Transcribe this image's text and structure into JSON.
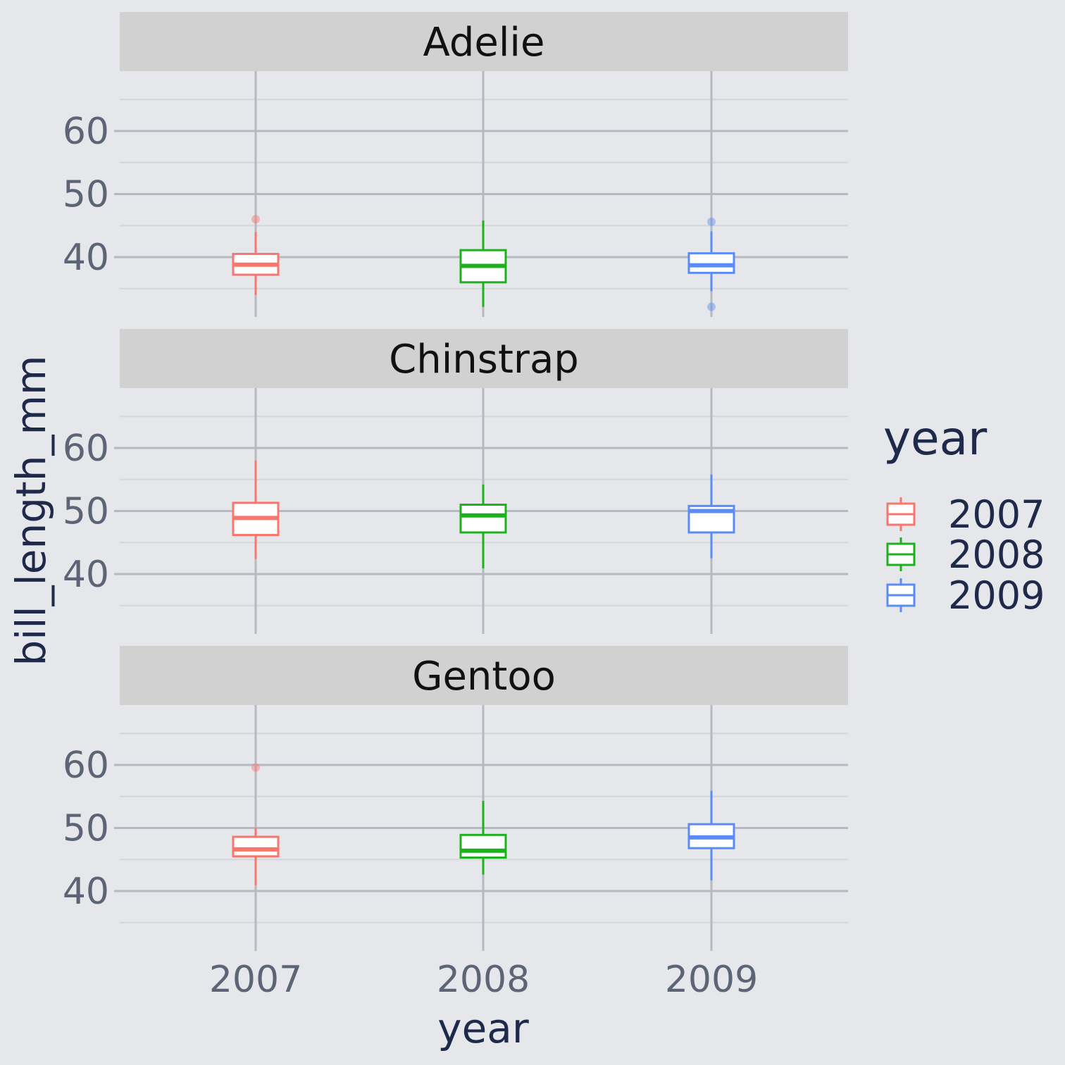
{
  "chart_data": {
    "type": "box",
    "xlabel": "year",
    "ylabel": "bill_length_mm",
    "categories": [
      "2007",
      "2008",
      "2009"
    ],
    "yticks": [
      40,
      50,
      60
    ],
    "ylim": [
      30.5,
      69.5
    ],
    "legend": {
      "title": "year",
      "entries": [
        "2007",
        "2008",
        "2009"
      ],
      "position": "right"
    },
    "colors": {
      "2007": "#f8766d",
      "2008": "#1db11d",
      "2009": "#5b8cf5"
    },
    "panels": [
      {
        "title": "Adelie",
        "boxes": [
          {
            "x": "2007",
            "whisker_low": 34.0,
            "q1": 37.2,
            "median": 38.8,
            "q3": 40.5,
            "whisker_high": 44.0,
            "outliers": [
              46.0
            ]
          },
          {
            "x": "2008",
            "whisker_low": 32.1,
            "q1": 36.0,
            "median": 38.6,
            "q3": 41.1,
            "whisker_high": 45.8,
            "outliers": []
          },
          {
            "x": "2009",
            "whisker_low": 34.6,
            "q1": 37.5,
            "median": 38.7,
            "q3": 40.6,
            "whisker_high": 44.1,
            "outliers": [
              45.6,
              32.1
            ]
          }
        ]
      },
      {
        "title": "Chinstrap",
        "boxes": [
          {
            "x": "2007",
            "whisker_low": 42.4,
            "q1": 46.2,
            "median": 48.9,
            "q3": 51.3,
            "whisker_high": 58.0,
            "outliers": []
          },
          {
            "x": "2008",
            "whisker_low": 40.9,
            "q1": 46.6,
            "median": 49.3,
            "q3": 51.0,
            "whisker_high": 54.2,
            "outliers": []
          },
          {
            "x": "2009",
            "whisker_low": 42.5,
            "q1": 46.6,
            "median": 50.0,
            "q3": 50.8,
            "whisker_high": 55.8,
            "outliers": []
          }
        ]
      },
      {
        "title": "Gentoo",
        "boxes": [
          {
            "x": "2007",
            "whisker_low": 40.9,
            "q1": 45.5,
            "median": 46.6,
            "q3": 48.6,
            "whisker_high": 50.0,
            "outliers": [
              59.6
            ]
          },
          {
            "x": "2008",
            "whisker_low": 42.6,
            "q1": 45.3,
            "median": 46.4,
            "q3": 48.9,
            "whisker_high": 54.3,
            "outliers": []
          },
          {
            "x": "2009",
            "whisker_low": 41.7,
            "q1": 46.8,
            "median": 48.5,
            "q3": 50.6,
            "whisker_high": 55.9,
            "outliers": []
          }
        ]
      }
    ]
  }
}
